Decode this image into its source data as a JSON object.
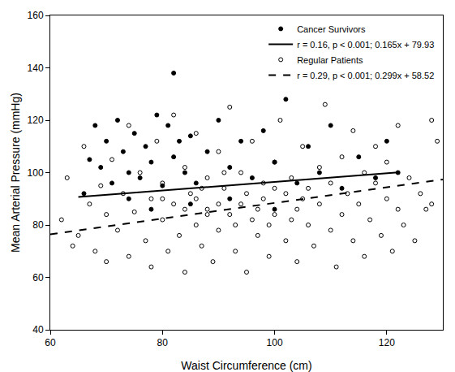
{
  "chart_data": {
    "type": "scatter",
    "x_label": "Waist Circumference (cm)",
    "y_label": "Mean Arterial Pressure (mmHg)",
    "xlim": [
      60,
      130
    ],
    "xticks": [
      60,
      80,
      100,
      120
    ],
    "ylim": [
      40,
      160
    ],
    "yticks": [
      40,
      60,
      80,
      100,
      120,
      140,
      160
    ],
    "grid": false,
    "legend": "top right",
    "series": [
      {
        "name": "Cancer Survivors",
        "type": "scatter",
        "marker": "filled_circle",
        "color": "#000000",
        "x": [
          66,
          67,
          68,
          69,
          70,
          71,
          72,
          73,
          74,
          75,
          76,
          77,
          78,
          79,
          80,
          81,
          82,
          82,
          83,
          84,
          85,
          86,
          88,
          90,
          92,
          94,
          96,
          98,
          100,
          102,
          104,
          106,
          108,
          110,
          112,
          115,
          118,
          120,
          122,
          78,
          85,
          92,
          100,
          74
        ],
        "values": [
          92,
          105,
          118,
          102,
          112,
          96,
          120,
          108,
          100,
          115,
          98,
          110,
          104,
          122,
          95,
          118,
          138,
          106,
          112,
          100,
          114,
          96,
          108,
          120,
          102,
          112,
          98,
          116,
          104,
          128,
          96,
          110,
          100,
          118,
          94,
          106,
          98,
          112,
          100,
          86,
          88,
          90,
          86,
          90
        ]
      },
      {
        "name": "r = 0.16, p < 0.001; 0.165x + 79.93",
        "type": "line",
        "line_style": "solid",
        "color": "#000000",
        "x": [
          65,
          122
        ],
        "values": [
          90.66,
          100.06
        ]
      },
      {
        "name": "Regular Patients",
        "type": "scatter",
        "marker": "open_circle",
        "color": "#000000",
        "x": [
          62,
          63,
          64,
          65,
          66,
          67,
          68,
          69,
          70,
          70,
          71,
          72,
          73,
          74,
          74,
          75,
          76,
          77,
          78,
          78,
          79,
          80,
          80,
          81,
          82,
          82,
          83,
          84,
          84,
          85,
          86,
          86,
          87,
          88,
          88,
          89,
          90,
          90,
          91,
          92,
          92,
          93,
          94,
          94,
          95,
          96,
          96,
          97,
          98,
          98,
          99,
          100,
          100,
          101,
          102,
          102,
          103,
          104,
          104,
          105,
          106,
          106,
          107,
          108,
          108,
          109,
          110,
          110,
          111,
          112,
          112,
          113,
          114,
          114,
          115,
          116,
          116,
          117,
          118,
          118,
          119,
          120,
          120,
          121,
          122,
          122,
          123,
          124,
          125,
          126,
          127,
          128,
          128,
          129,
          86,
          90,
          95,
          88,
          100,
          93,
          84,
          97,
          105,
          80,
          91,
          99,
          87,
          103
        ],
        "values": [
          82,
          98,
          72,
          76,
          110,
          88,
          70,
          95,
          66,
          84,
          105,
          78,
          92,
          68,
          118,
          85,
          100,
          74,
          90,
          64,
          112,
          82,
          96,
          70,
          88,
          122,
          76,
          102,
          62,
          92,
          80,
          115,
          72,
          98,
          86,
          66,
          108,
          78,
          94,
          84,
          125,
          70,
          100,
          88,
          62,
          82,
          112,
          76,
          96,
          90,
          68,
          104,
          84,
          120,
          74,
          92,
          98,
          66,
          86,
          110,
          80,
          94,
          72,
          102,
          88,
          126,
          78,
          96,
          64,
          106,
          84,
          92,
          74,
          116,
          88,
          100,
          68,
          82,
          96,
          110,
          76,
          90,
          104,
          70,
          86,
          118,
          80,
          98,
          74,
          92,
          86,
          120,
          88,
          112,
          90,
          88,
          92,
          84,
          94,
          80,
          86,
          86,
          90,
          90,
          100,
          80,
          94,
          82
        ]
      },
      {
        "name": "r = 0.29, p < 0.001; 0.299x + 58.52",
        "type": "line",
        "line_style": "dash",
        "color": "#000000",
        "x": [
          60,
          130
        ],
        "values": [
          76.46,
          97.39
        ]
      }
    ]
  }
}
